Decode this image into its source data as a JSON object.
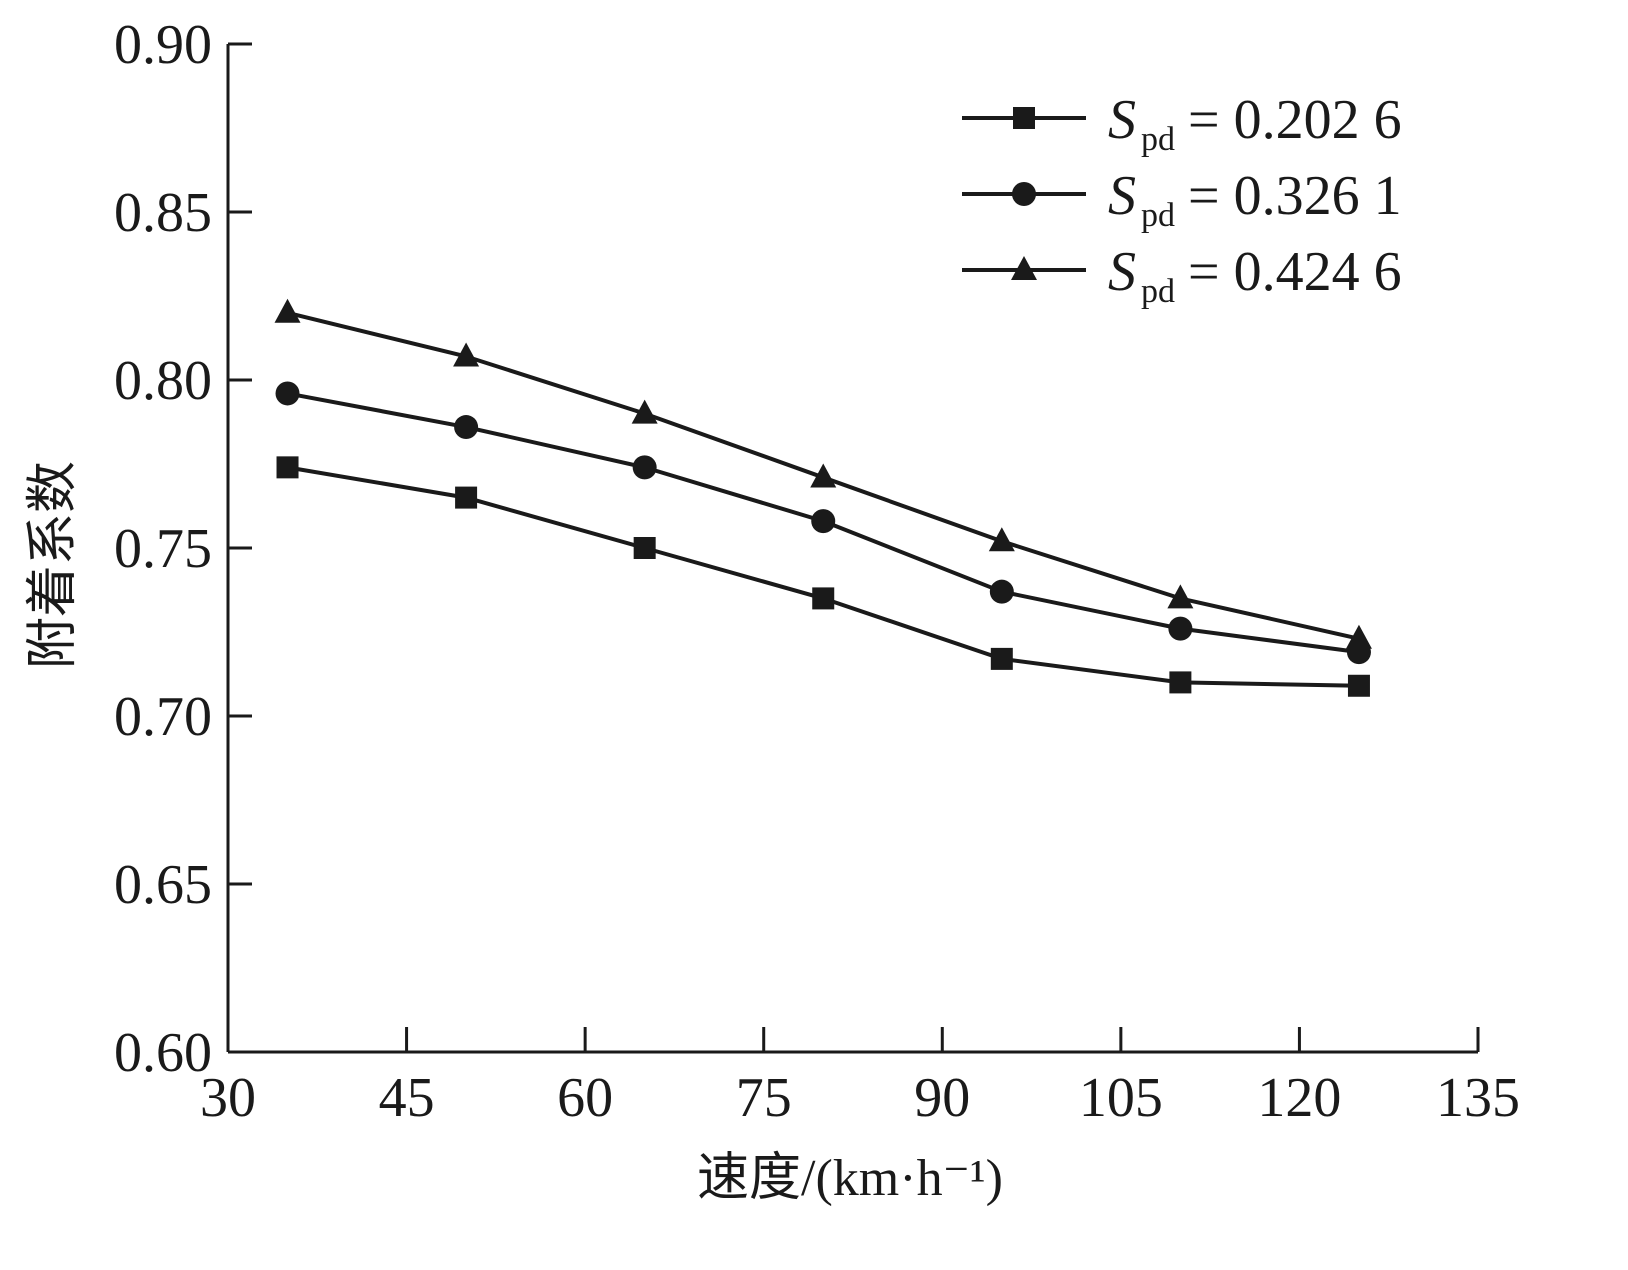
{
  "chart_data": {
    "type": "line",
    "xlabel": "速度/(km·h⁻¹)",
    "ylabel": "附着系数",
    "xlim": [
      30,
      135
    ],
    "ylim": [
      0.6,
      0.9
    ],
    "xticks": [
      30,
      45,
      60,
      75,
      90,
      105,
      120,
      135
    ],
    "xtick_labels": [
      "30",
      "45",
      "60",
      "75",
      "90",
      "105",
      "120",
      "135"
    ],
    "yticks": [
      0.6,
      0.65,
      0.7,
      0.75,
      0.8,
      0.85,
      0.9
    ],
    "ytick_labels": [
      "0.60",
      "0.65",
      "0.70",
      "0.75",
      "0.80",
      "0.85",
      "0.90"
    ],
    "grid": false,
    "legend_position": "top-right",
    "x": [
      35,
      50,
      65,
      80,
      95,
      110,
      125
    ],
    "series": [
      {
        "name_symbol": "S",
        "name_subscript": "pd",
        "name_value": "= 0.202 6",
        "marker": "square",
        "values": [
          0.774,
          0.765,
          0.75,
          0.735,
          0.717,
          0.71,
          0.709
        ]
      },
      {
        "name_symbol": "S",
        "name_subscript": "pd",
        "name_value": "= 0.326 1",
        "marker": "circle",
        "values": [
          0.796,
          0.786,
          0.774,
          0.758,
          0.737,
          0.726,
          0.719
        ]
      },
      {
        "name_symbol": "S",
        "name_subscript": "pd",
        "name_value": "= 0.424 6",
        "marker": "triangle",
        "values": [
          0.82,
          0.807,
          0.79,
          0.771,
          0.752,
          0.735,
          0.723
        ]
      }
    ],
    "colors": {
      "line": "#1a1a1a",
      "axis": "#1a1a1a",
      "background": "#ffffff"
    }
  }
}
